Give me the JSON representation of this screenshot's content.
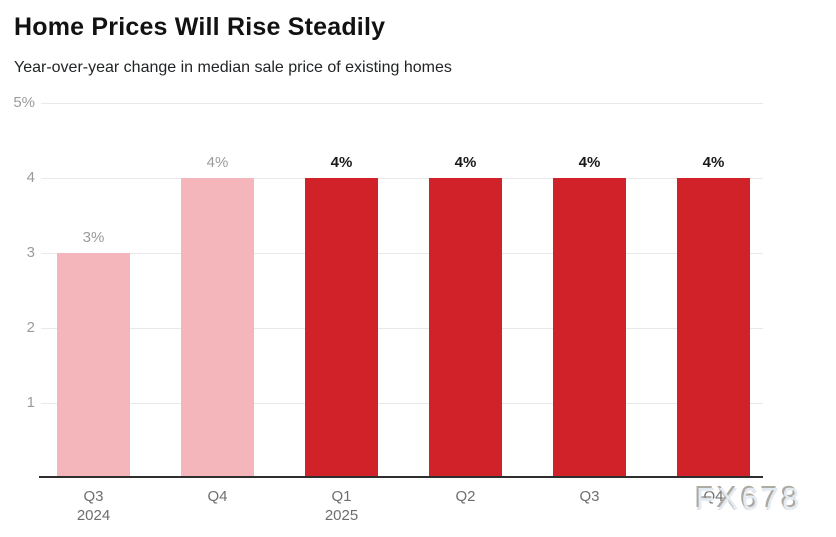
{
  "header": {
    "title": "Home Prices Will Rise Steadily",
    "subtitle": "Year-over-year change in median sale price of existing homes"
  },
  "chart_data": {
    "type": "bar",
    "title": "Home Prices Will Rise Steadily",
    "subtitle": "Year-over-year change in median sale price of existing homes",
    "categories": [
      "Q3 2024",
      "Q4 2024",
      "Q1 2025",
      "Q2 2025",
      "Q3 2025",
      "Q4 2025"
    ],
    "x_tick_labels": [
      [
        "Q3",
        "2024"
      ],
      [
        "Q4"
      ],
      [
        "Q1",
        "2025"
      ],
      [
        "Q2"
      ],
      [
        "Q3"
      ],
      [
        "Q4"
      ]
    ],
    "values": [
      3,
      4,
      4,
      4,
      4,
      4
    ],
    "data_labels": [
      "3%",
      "4%",
      "4%",
      "4%",
      "4%",
      "4%"
    ],
    "bar_styles": [
      "past",
      "past",
      "forecast",
      "forecast",
      "forecast",
      "forecast"
    ],
    "colors": {
      "past": "#f4b6ba",
      "forecast": "#d1222a",
      "label_past": "#9b9b9b",
      "label_forecast": "#1a1a1a",
      "gridline": "#e9e9e9",
      "axis_line": "#2e2e2e",
      "tick_text": "#9b9b9b"
    },
    "ylim": [
      0,
      5
    ],
    "y_ticks": [
      {
        "value": 5,
        "label": "5%"
      },
      {
        "value": 4,
        "label": "4"
      },
      {
        "value": 3,
        "label": "3"
      },
      {
        "value": 2,
        "label": "2"
      },
      {
        "value": 1,
        "label": "1"
      }
    ],
    "grid": true,
    "legend": "none",
    "xlabel": "",
    "ylabel": ""
  },
  "watermark": {
    "text": "FX678"
  }
}
